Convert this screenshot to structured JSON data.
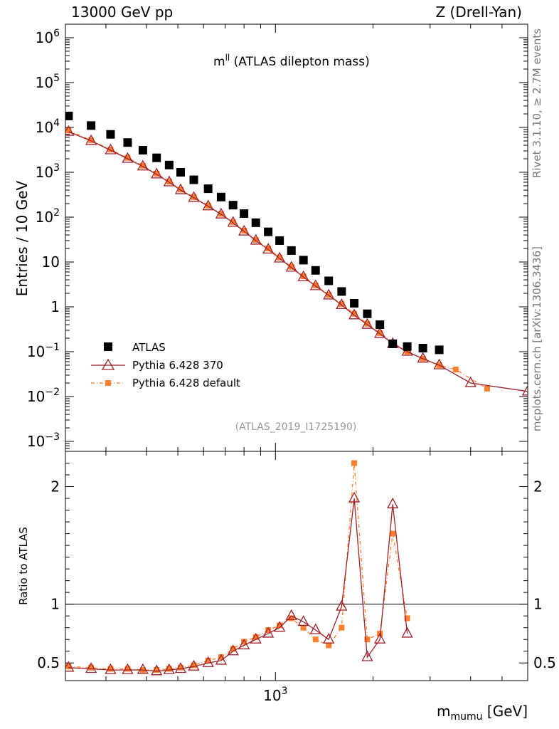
{
  "header": {
    "left": "13000 GeV pp",
    "right": "Z (Drell-Yan)"
  },
  "side_labels": {
    "rivet": "Rivet 3.1.10, ≥ 2.7M events",
    "mcplots": "mcplots.cern.ch [arXiv:1306.3436]"
  },
  "analysis_id": "(ATLAS_2019_I1725190)",
  "chart_data": [
    {
      "type": "scatter",
      "title_main": "m",
      "title_sup": "ll",
      "title_rest": " (ATLAS dilepton mass)",
      "ylabel": "Entries / 10 GeV",
      "xscale": "log",
      "yscale": "log",
      "xlim": [
        225,
        6000
      ],
      "ylim": [
        0.0006,
        2000000
      ],
      "grid": false,
      "legend_position": "bottom-left",
      "y_ticks": [
        {
          "v": 0.001,
          "base": "10",
          "exp": "−3"
        },
        {
          "v": 0.01,
          "base": "10",
          "exp": "−2"
        },
        {
          "v": 0.1,
          "base": "10",
          "exp": "−1"
        },
        {
          "v": 1,
          "base": "1",
          "exp": ""
        },
        {
          "v": 10,
          "base": "10",
          "exp": ""
        },
        {
          "v": 100,
          "base": "10",
          "exp": "2"
        },
        {
          "v": 1000,
          "base": "10",
          "exp": "3"
        },
        {
          "v": 10000,
          "base": "10",
          "exp": "4"
        },
        {
          "v": 100000,
          "base": "10",
          "exp": "5"
        },
        {
          "v": 1000000,
          "base": "10",
          "exp": "6"
        }
      ],
      "series": [
        {
          "name": "ATLAS",
          "color": "#000000",
          "marker": "square",
          "x": [
            230,
            270,
            310,
            350,
            390,
            430,
            470,
            510,
            560,
            620,
            680,
            740,
            800,
            870,
            950,
            1030,
            1120,
            1220,
            1330,
            1460,
            1600,
            1750,
            1920,
            2100,
            2300,
            2550,
            2850,
            3200
          ],
          "y": [
            18000,
            11000,
            7000,
            4600,
            3100,
            2100,
            1450,
            1000,
            680,
            430,
            280,
            185,
            120,
            75,
            47,
            30,
            18,
            11,
            6.5,
            3.8,
            2.2,
            1.2,
            0.7,
            0.4,
            0.15,
            0.13,
            0.12,
            0.11
          ]
        },
        {
          "name": "Pythia 6.428 370",
          "color": "#a0202a",
          "marker": "triangle-open",
          "x": [
            230,
            270,
            310,
            350,
            390,
            430,
            470,
            510,
            560,
            620,
            680,
            740,
            800,
            870,
            950,
            1030,
            1120,
            1220,
            1330,
            1460,
            1600,
            1750,
            1920,
            2100,
            2300,
            2550,
            2850,
            3200,
            4000,
            6000
          ],
          "y": [
            8000,
            5000,
            3100,
            2000,
            1350,
            900,
            600,
            400,
            270,
            175,
            115,
            75,
            48,
            30,
            19,
            12,
            7.5,
            4.6,
            2.9,
            1.8,
            1.1,
            0.65,
            0.4,
            0.25,
            0.15,
            0.1,
            0.07,
            0.05,
            0.02,
            0.013
          ]
        },
        {
          "name": "Pythia 6.428 default",
          "color": "#ff7f2a",
          "marker": "square-small",
          "x": [
            230,
            270,
            310,
            350,
            390,
            430,
            470,
            510,
            560,
            620,
            680,
            740,
            800,
            870,
            950,
            1030,
            1120,
            1220,
            1330,
            1460,
            1600,
            1750,
            1920,
            2100,
            2300,
            2550,
            2850,
            3200,
            3600,
            4500
          ],
          "y": [
            8500,
            5200,
            3200,
            2100,
            1400,
            930,
            620,
            410,
            280,
            180,
            118,
            77,
            50,
            31,
            20,
            12.5,
            7.8,
            4.8,
            3,
            1.85,
            1.15,
            0.7,
            0.42,
            0.26,
            0.16,
            0.1,
            0.07,
            0.05,
            0.04,
            0.015
          ]
        }
      ]
    },
    {
      "type": "scatter",
      "ylabel": "Ratio to ATLAS",
      "xlabel_main": "m",
      "xlabel_sub": "mumu",
      "xlabel_rest": " [GeV]",
      "xscale": "log",
      "xlim": [
        225,
        6000
      ],
      "ylim": [
        0.35,
        2.3
      ],
      "reference_line": 1,
      "y_ticks": [
        {
          "v": 0.5,
          "label": "0.5"
        },
        {
          "v": 1,
          "label": "1"
        },
        {
          "v": 2,
          "label": "2"
        }
      ],
      "x_ticks": [
        {
          "v": 1000,
          "base": "10",
          "exp": "3"
        }
      ],
      "series": [
        {
          "name": "Pythia 6.428 370",
          "color": "#a0202a",
          "marker": "triangle-open",
          "x": [
            230,
            270,
            310,
            350,
            390,
            430,
            470,
            510,
            560,
            620,
            680,
            740,
            800,
            870,
            950,
            1030,
            1120,
            1220,
            1330,
            1460,
            1600,
            1750,
            1920,
            2100,
            2300,
            2550
          ],
          "y": [
            0.46,
            0.45,
            0.44,
            0.44,
            0.44,
            0.43,
            0.44,
            0.45,
            0.47,
            0.5,
            0.52,
            0.6,
            0.65,
            0.7,
            0.75,
            0.8,
            0.9,
            0.85,
            0.78,
            0.7,
            0.98,
            1.9,
            0.55,
            0.7,
            1.85,
            0.75
          ]
        },
        {
          "name": "Pythia 6.428 default",
          "color": "#ff7f2a",
          "marker": "square-small",
          "x": [
            230,
            270,
            310,
            350,
            390,
            430,
            470,
            510,
            560,
            620,
            680,
            740,
            800,
            870,
            950,
            1030,
            1120,
            1220,
            1330,
            1460,
            1600,
            1750,
            1920,
            2100,
            2300,
            2550
          ],
          "y": [
            0.47,
            0.46,
            0.45,
            0.45,
            0.44,
            0.44,
            0.45,
            0.46,
            0.48,
            0.52,
            0.55,
            0.62,
            0.68,
            0.72,
            0.78,
            0.82,
            0.88,
            0.8,
            0.7,
            0.65,
            0.8,
            2.2,
            0.7,
            0.75,
            1.6,
            0.88
          ]
        }
      ]
    }
  ]
}
